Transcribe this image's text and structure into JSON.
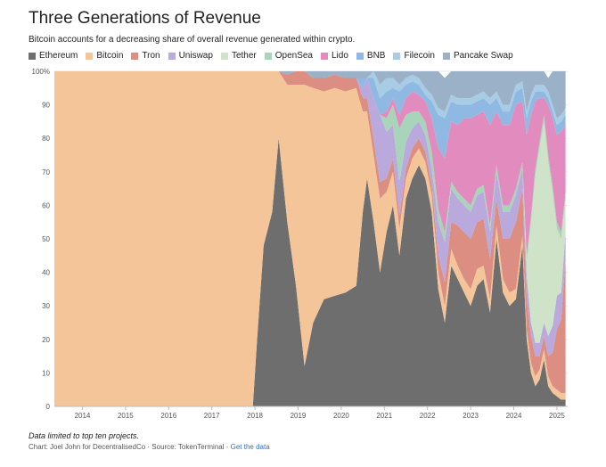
{
  "title": "Three Generations of Revenue",
  "subtitle": "Bitcoin accounts for a decreasing share of overall revenue generated within crypto.",
  "footnote": "Data limited to top ten projects.",
  "credit": {
    "prefix": "Chart: Joel John for DecentralisedCo · Source: TokenTerminal · ",
    "link": "Get the data"
  },
  "chart_data": {
    "type": "area",
    "stacking": "percent",
    "xlim": [
      2013.35,
      2025.25
    ],
    "ylim": [
      0,
      100
    ],
    "y_tick_labels": [
      "0",
      "10",
      "20",
      "30",
      "40",
      "50",
      "60",
      "70",
      "80",
      "90",
      "100%"
    ],
    "x_tick_labels": [
      "2014",
      "2015",
      "2016",
      "2017",
      "2018",
      "2019",
      "2020",
      "2021",
      "2022",
      "2023",
      "2024",
      "2025"
    ],
    "grid": true,
    "legend_position": "top",
    "x": [
      2013.35,
      2017.95,
      2018.05,
      2018.2,
      2018.4,
      2018.55,
      2018.75,
      2018.95,
      2019.15,
      2019.35,
      2019.6,
      2019.85,
      2020.1,
      2020.35,
      2020.5,
      2020.6,
      2020.75,
      2020.9,
      2021.05,
      2021.2,
      2021.35,
      2021.5,
      2021.65,
      2021.8,
      2021.95,
      2022.1,
      2022.25,
      2022.4,
      2022.55,
      2022.7,
      2022.85,
      2023.0,
      2023.15,
      2023.3,
      2023.45,
      2023.6,
      2023.75,
      2023.9,
      2024.05,
      2024.2,
      2024.3,
      2024.4,
      2024.5,
      2024.6,
      2024.7,
      2024.8,
      2024.9,
      2025.0,
      2025.1,
      2025.2
    ],
    "series": [
      {
        "name": "Ethereum",
        "color": "#6e6e6e",
        "values": [
          0,
          0,
          20,
          48,
          58,
          80,
          55,
          36,
          12,
          25,
          32,
          33,
          34,
          36,
          58,
          68,
          55,
          40,
          52,
          60,
          45,
          62,
          68,
          72,
          68,
          58,
          35,
          25,
          42,
          38,
          34,
          30,
          36,
          38,
          28,
          50,
          34,
          30,
          32,
          48,
          20,
          10,
          6,
          8,
          14,
          6,
          4,
          3,
          2,
          2
        ]
      },
      {
        "name": "Bitcoin",
        "color": "#f5c59a",
        "values": [
          100,
          100,
          80,
          52,
          42,
          20,
          41,
          60,
          84,
          70,
          62,
          62,
          60,
          59,
          30,
          20,
          20,
          22,
          12,
          10,
          8,
          6,
          6,
          5,
          5,
          5,
          5,
          5,
          5,
          4,
          4,
          5,
          5,
          4,
          4,
          4,
          4,
          4,
          3,
          3,
          3,
          3,
          3,
          3,
          3,
          3,
          2,
          2,
          2,
          2
        ]
      },
      {
        "name": "Tron",
        "color": "#dc8e82",
        "values": [
          0,
          0,
          0,
          0,
          0,
          0,
          3,
          4,
          4,
          3,
          4,
          4,
          4,
          3,
          4,
          4,
          5,
          5,
          4,
          4,
          4,
          3,
          3,
          3,
          3,
          3,
          5,
          7,
          8,
          12,
          14,
          15,
          14,
          14,
          12,
          8,
          12,
          16,
          20,
          14,
          10,
          8,
          6,
          4,
          4,
          6,
          10,
          18,
          22,
          40
        ]
      },
      {
        "name": "Uniswap",
        "color": "#b9a9dc",
        "values": [
          0,
          0,
          0,
          0,
          0,
          0,
          0,
          0,
          0,
          0,
          0,
          0,
          0,
          0,
          3,
          6,
          12,
          20,
          14,
          10,
          10,
          8,
          6,
          5,
          5,
          5,
          10,
          12,
          10,
          8,
          8,
          8,
          8,
          8,
          8,
          8,
          8,
          8,
          8,
          6,
          6,
          4,
          4,
          4,
          4,
          6,
          8,
          10,
          8,
          8
        ]
      },
      {
        "name": "Tether",
        "color": "#cfe3c8",
        "values": [
          0,
          0,
          0,
          0,
          0,
          0,
          0,
          0,
          0,
          0,
          0,
          0,
          0,
          0,
          0,
          0,
          0,
          0,
          0,
          0,
          0,
          0,
          0,
          0,
          0,
          0,
          0,
          0,
          0,
          0,
          0,
          0,
          0,
          0,
          0,
          0,
          0,
          0,
          0,
          0,
          4,
          30,
          50,
          58,
          60,
          52,
          40,
          20,
          16,
          10
        ]
      },
      {
        "name": "OpenSea",
        "color": "#a8d4ba",
        "values": [
          0,
          0,
          0,
          0,
          0,
          0,
          0,
          0,
          0,
          0,
          0,
          0,
          0,
          0,
          0,
          0,
          0,
          0,
          4,
          6,
          16,
          8,
          5,
          3,
          4,
          5,
          4,
          3,
          2,
          2,
          2,
          2,
          2,
          2,
          2,
          2,
          2,
          2,
          2,
          2,
          2,
          2,
          2,
          2,
          2,
          2,
          2,
          2,
          2,
          2
        ]
      },
      {
        "name": "Lido",
        "color": "#e28bbf",
        "values": [
          0,
          0,
          0,
          0,
          0,
          0,
          0,
          0,
          0,
          0,
          0,
          0,
          0,
          0,
          0,
          0,
          0,
          0,
          2,
          2,
          4,
          5,
          6,
          5,
          6,
          10,
          18,
          22,
          18,
          20,
          24,
          26,
          22,
          22,
          30,
          16,
          24,
          24,
          25,
          18,
          36,
          30,
          20,
          13,
          5,
          15,
          20,
          26,
          30,
          20
        ]
      },
      {
        "name": "BNB",
        "color": "#8fb8e2",
        "values": [
          0,
          0,
          0,
          0,
          0,
          0,
          0,
          0,
          0,
          0,
          0,
          0,
          0,
          0,
          3,
          0,
          6,
          5,
          6,
          3,
          7,
          4,
          3,
          3,
          2,
          5,
          10,
          12,
          6,
          6,
          4,
          4,
          4,
          4,
          6,
          4,
          4,
          4,
          4,
          4,
          5,
          4,
          3,
          2,
          2,
          2,
          2,
          3,
          3,
          3
        ]
      },
      {
        "name": "Filecoin",
        "color": "#a7cce4",
        "values": [
          0,
          0,
          0,
          0,
          0,
          0,
          0,
          0,
          0,
          0,
          0,
          0,
          0,
          0,
          0,
          0,
          2,
          4,
          4,
          3,
          2,
          2,
          2,
          2,
          2,
          2,
          2,
          2,
          2,
          2,
          2,
          2,
          2,
          2,
          2,
          2,
          2,
          2,
          2,
          2,
          2,
          2,
          2,
          2,
          2,
          2,
          2,
          2,
          2,
          2
        ]
      },
      {
        "name": "Pancake Swap",
        "color": "#9ab1c8",
        "values": [
          0,
          0,
          0,
          0,
          0,
          0,
          1,
          0,
          0,
          2,
          2,
          1,
          2,
          2,
          2,
          2,
          0,
          4,
          4,
          2,
          4,
          2,
          1,
          2,
          5,
          7,
          11,
          10,
          7,
          8,
          8,
          8,
          7,
          6,
          8,
          6,
          10,
          10,
          4,
          3,
          12,
          7,
          4,
          4,
          4,
          4,
          10,
          14,
          13,
          11
        ]
      }
    ]
  }
}
